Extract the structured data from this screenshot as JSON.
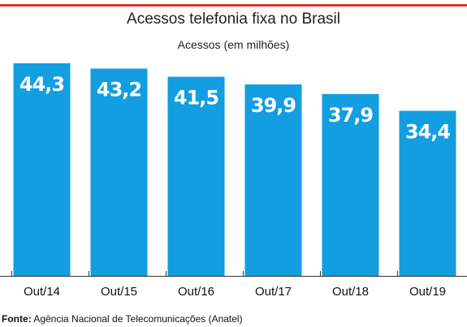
{
  "colors": {
    "bar": "#129ee0",
    "accent": "#e0312d",
    "axis": "#333333"
  },
  "chart_data": {
    "type": "bar",
    "title": "Acessos telefonia fixa no Brasil",
    "ylabel": "Acessos (em milhões)",
    "xlabel": "",
    "categories": [
      "Out/14",
      "Out/15",
      "Out/16",
      "Out/17",
      "Out/18",
      "Out/19"
    ],
    "values": [
      44.3,
      43.2,
      41.5,
      39.9,
      37.9,
      34.4
    ],
    "value_labels": [
      "44,3",
      "43,2",
      "41,5",
      "39,9",
      "37,9",
      "34,4"
    ],
    "ylim": [
      0,
      44.3
    ],
    "grid": false,
    "legend": "none"
  },
  "source": {
    "label": "Fonte:",
    "text": "Agência Nacional de Telecomunicações (Anatel)"
  }
}
